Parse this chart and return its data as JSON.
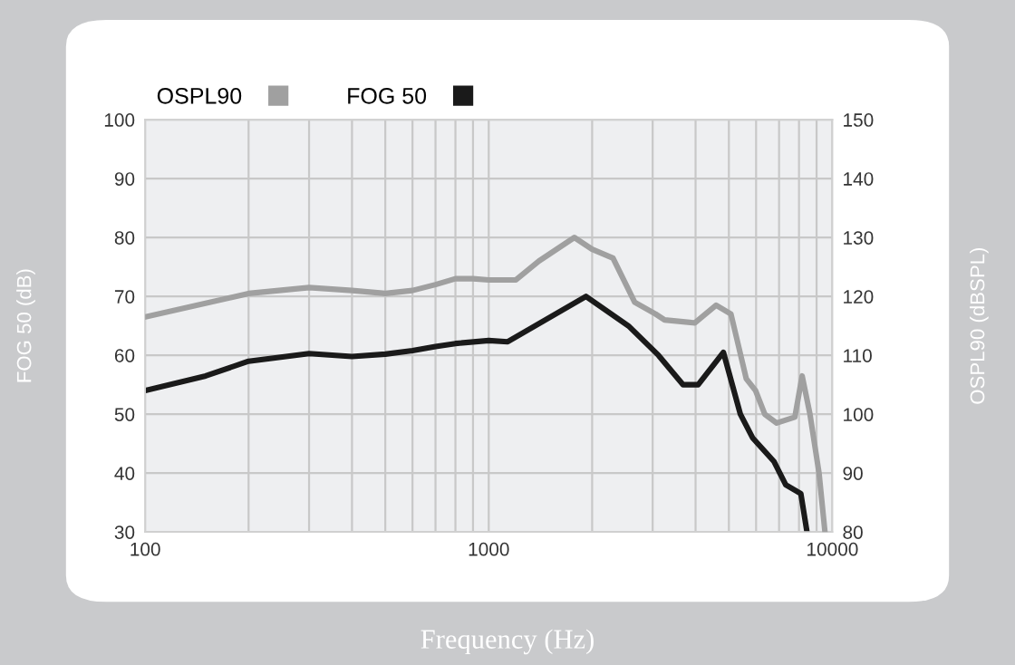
{
  "chart_data": {
    "type": "line",
    "xlabel": "Frequency (Hz)",
    "ylabel": "FOG 50 (dB)",
    "y2label": "OSPL90 (dBSPL)",
    "log": "x",
    "xlim": [
      100,
      10000
    ],
    "xticks": [
      100,
      {
        "value": 200,
        "label": null
      },
      {
        "value": 300,
        "label": null
      },
      {
        "value": 400,
        "label": null
      },
      {
        "value": 500,
        "label": null
      },
      {
        "value": 600,
        "label": null
      },
      {
        "value": 700,
        "label": null
      },
      {
        "value": 800,
        "label": null
      },
      {
        "value": 900,
        "label": null
      },
      1000,
      {
        "value": 2000,
        "label": null
      },
      {
        "value": 3000,
        "label": null
      },
      {
        "value": 4000,
        "label": null
      },
      {
        "value": 5000,
        "label": null
      },
      {
        "value": 6000,
        "label": null
      },
      {
        "value": 7000,
        "label": null
      },
      {
        "value": 8000,
        "label": null
      },
      {
        "value": 9000,
        "label": null
      },
      10000
    ],
    "ylim": [
      30,
      100
    ],
    "yticks": [
      30,
      40,
      50,
      60,
      70,
      80,
      90,
      100
    ],
    "y2lim": [
      80,
      150
    ],
    "y2ticks": [
      80,
      90,
      100,
      110,
      120,
      130,
      140,
      150
    ],
    "grid": true,
    "legend": "top left",
    "line_style": "solid",
    "series": [
      {
        "name": "OSPL90",
        "color": "#a0a0a0",
        "axis": "y2",
        "x": [
          100,
          200,
          300,
          400,
          500,
          600,
          700,
          800,
          900,
          1000,
          1200,
          1400,
          1775,
          2000,
          2300,
          2660,
          3060,
          3250,
          3980,
          4590,
          5070,
          5620,
          5980,
          6360,
          6890,
          7780,
          8170,
          8610,
          9150,
          9520
        ],
        "values": [
          116.5,
          120.5,
          121.5,
          121,
          120.5,
          121,
          122,
          123,
          123,
          122.8,
          122.8,
          126,
          130,
          128,
          126.5,
          119,
          117,
          116,
          115.5,
          118.5,
          117,
          106,
          104,
          100,
          98.5,
          99.5,
          106.5,
          100,
          90,
          80
        ]
      },
      {
        "name": "FOG 50",
        "color": "#1a1a1a",
        "x": [
          100,
          150,
          200,
          300,
          400,
          500,
          600,
          700,
          800,
          1000,
          1136,
          1920,
          2550,
          3120,
          3680,
          4070,
          4820,
          5400,
          5860,
          6760,
          7320,
          8100,
          8440
        ],
        "values": [
          54,
          56.5,
          59,
          60.3,
          59.8,
          60.2,
          60.8,
          61.5,
          62,
          62.5,
          62.3,
          70,
          65,
          60,
          55,
          55,
          60.5,
          50,
          46,
          42,
          38,
          36.5,
          30
        ]
      }
    ]
  }
}
